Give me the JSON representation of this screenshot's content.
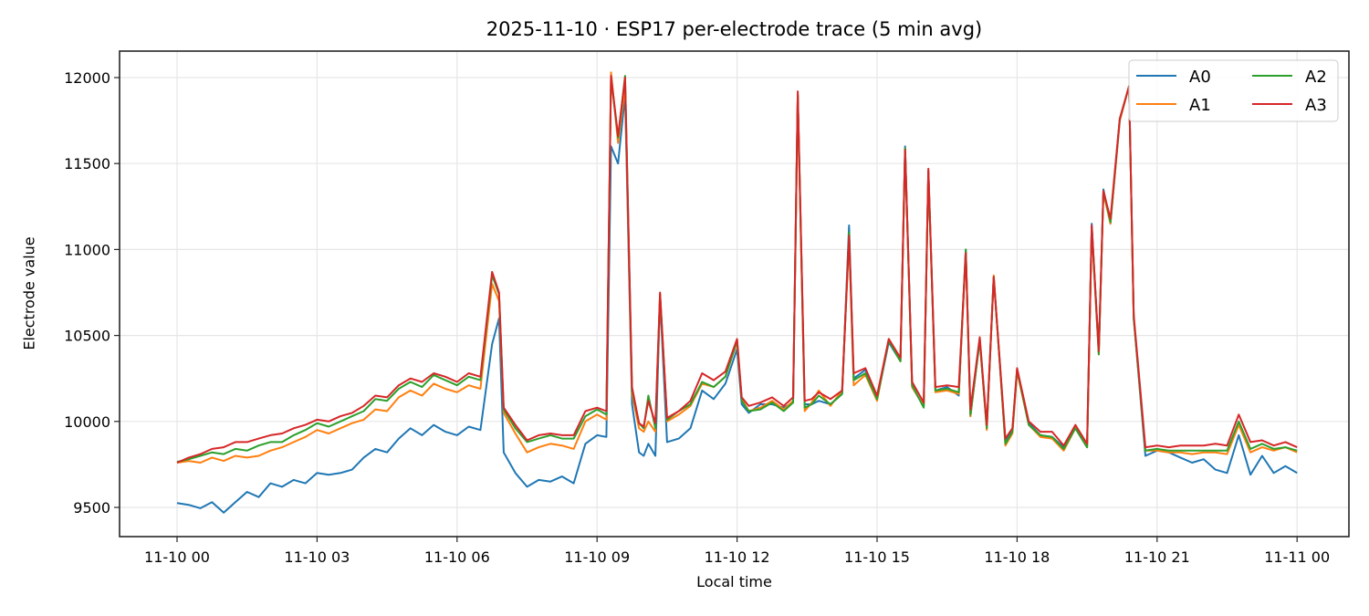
{
  "chart_data": {
    "type": "line",
    "title": "2025-11-10 · ESP17 per-electrode trace (5 min avg)",
    "xlabel": "Local time",
    "ylabel": "Electrode value",
    "x_ticks": [
      "11-10 00",
      "11-10 03",
      "11-10 06",
      "11-10 09",
      "11-10 12",
      "11-10 15",
      "11-10 18",
      "11-10 21",
      "11-11 00"
    ],
    "y_ticks": [
      9500,
      10000,
      10500,
      11000,
      11500,
      12000
    ],
    "ylim": [
      9330,
      12150
    ],
    "xlim_hours": [
      -0.75,
      24.6
    ],
    "grid": true,
    "legend_position": "upper right",
    "legend_columns": 2,
    "x_hours": [
      0,
      0.25,
      0.5,
      0.75,
      1,
      1.25,
      1.5,
      1.75,
      2,
      2.25,
      2.5,
      2.75,
      3,
      3.25,
      3.5,
      3.75,
      4,
      4.25,
      4.5,
      4.75,
      5,
      5.25,
      5.5,
      5.75,
      6,
      6.25,
      6.5,
      6.75,
      6.9,
      7,
      7.25,
      7.5,
      7.75,
      8,
      8.25,
      8.5,
      8.75,
      9,
      9.2,
      9.3,
      9.45,
      9.6,
      9.75,
      9.9,
      10,
      10.1,
      10.25,
      10.35,
      10.5,
      10.75,
      11,
      11.25,
      11.5,
      11.75,
      12,
      12.1,
      12.25,
      12.5,
      12.75,
      13,
      13.2,
      13.3,
      13.45,
      13.6,
      13.75,
      14,
      14.25,
      14.4,
      14.5,
      14.75,
      15,
      15.25,
      15.5,
      15.6,
      15.75,
      16,
      16.1,
      16.25,
      16.5,
      16.75,
      16.9,
      17,
      17.2,
      17.35,
      17.5,
      17.75,
      17.9,
      18,
      18.25,
      18.5,
      18.75,
      19,
      19.25,
      19.5,
      19.6,
      19.75,
      19.85,
      20,
      20.2,
      20.4,
      20.5,
      20.75,
      21,
      21.25,
      21.5,
      21.75,
      22,
      22.25,
      22.5,
      22.75,
      23,
      23.25,
      23.5,
      23.75,
      24
    ],
    "series": [
      {
        "name": "A0",
        "color": "#1f77b4",
        "values": [
          9525,
          9515,
          9495,
          9530,
          9470,
          9530,
          9590,
          9560,
          9640,
          9620,
          9660,
          9640,
          9700,
          9690,
          9700,
          9720,
          9790,
          9840,
          9820,
          9900,
          9960,
          9920,
          9980,
          9940,
          9920,
          9970,
          9950,
          10450,
          10600,
          9820,
          9700,
          9620,
          9660,
          9650,
          9680,
          9640,
          9870,
          9920,
          9910,
          11600,
          11500,
          11900,
          10100,
          9820,
          9800,
          9870,
          9800,
          10720,
          9880,
          9900,
          9960,
          10180,
          10130,
          10220,
          10420,
          10100,
          10050,
          10100,
          10100,
          10080,
          10110,
          11900,
          10100,
          10100,
          10120,
          10100,
          10160,
          11140,
          10250,
          10300,
          10130,
          10460,
          10350,
          11600,
          10200,
          10090,
          11450,
          10180,
          10200,
          10150,
          11000,
          10030,
          10480,
          9960,
          10840,
          9880,
          9950,
          10300,
          9990,
          9920,
          9910,
          9850,
          9960,
          9850,
          11150,
          10400,
          11350,
          11150,
          11750,
          11950,
          10600,
          9800,
          9830,
          9820,
          9790,
          9760,
          9780,
          9720,
          9700,
          9920,
          9690,
          9800,
          9700,
          9740,
          9700,
          9720
        ]
      },
      {
        "name": "A1",
        "color": "#ff7f0e",
        "values": [
          9760,
          9770,
          9760,
          9790,
          9770,
          9800,
          9790,
          9800,
          9830,
          9850,
          9880,
          9910,
          9950,
          9930,
          9960,
          9990,
          10010,
          10070,
          10060,
          10140,
          10180,
          10150,
          10220,
          10190,
          10170,
          10210,
          10190,
          10800,
          10700,
          10050,
          9930,
          9820,
          9850,
          9870,
          9860,
          9840,
          10000,
          10040,
          10010,
          12030,
          11620,
          11950,
          10160,
          9960,
          9940,
          10000,
          9940,
          10740,
          10000,
          10040,
          10090,
          10220,
          10200,
          10260,
          10460,
          10130,
          10060,
          10080,
          10120,
          10070,
          10120,
          11900,
          10060,
          10110,
          10180,
          10090,
          10180,
          11060,
          10210,
          10270,
          10120,
          10480,
          10350,
          11580,
          10200,
          10090,
          11450,
          10170,
          10180,
          10160,
          10980,
          10030,
          10480,
          9950,
          10850,
          9860,
          9930,
          10290,
          9980,
          9910,
          9900,
          9830,
          9960,
          9850,
          11120,
          10390,
          11330,
          11150,
          11750,
          11950,
          10600,
          9830,
          9830,
          9820,
          9820,
          9810,
          9820,
          9820,
          9810,
          9980,
          9820,
          9850,
          9830,
          9850,
          9820,
          9840
        ]
      },
      {
        "name": "A2",
        "color": "#2ca02c",
        "values": [
          9765,
          9780,
          9800,
          9820,
          9810,
          9840,
          9830,
          9860,
          9880,
          9880,
          9920,
          9950,
          9990,
          9970,
          10000,
          10030,
          10060,
          10130,
          10120,
          10190,
          10230,
          10200,
          10270,
          10240,
          10210,
          10260,
          10240,
          10850,
          10740,
          10070,
          9960,
          9880,
          9900,
          9920,
          9900,
          9900,
          10030,
          10070,
          10040,
          12000,
          11650,
          12010,
          10180,
          9990,
          9960,
          10150,
          9960,
          10740,
          10010,
          10060,
          10100,
          10230,
          10200,
          10260,
          10470,
          10120,
          10060,
          10070,
          10110,
          10060,
          10110,
          11900,
          10080,
          10100,
          10150,
          10100,
          10160,
          11100,
          10240,
          10280,
          10130,
          10470,
          10350,
          11590,
          10210,
          10080,
          11460,
          10180,
          10190,
          10170,
          11000,
          10040,
          10470,
          9960,
          10840,
          9870,
          9940,
          10300,
          9980,
          9920,
          9910,
          9840,
          9960,
          9850,
          11130,
          10390,
          11340,
          11160,
          11760,
          11950,
          10600,
          9830,
          9840,
          9830,
          9830,
          9830,
          9830,
          9830,
          9830,
          10000,
          9840,
          9870,
          9840,
          9850,
          9830,
          9850
        ]
      },
      {
        "name": "A3",
        "color": "#d62728",
        "values": [
          9760,
          9790,
          9810,
          9840,
          9850,
          9880,
          9880,
          9900,
          9920,
          9930,
          9960,
          9980,
          10010,
          10000,
          10030,
          10050,
          10090,
          10150,
          10140,
          10210,
          10250,
          10230,
          10280,
          10260,
          10230,
          10280,
          10260,
          10870,
          10750,
          10080,
          9980,
          9890,
          9920,
          9930,
          9920,
          9920,
          10060,
          10080,
          10060,
          12010,
          11660,
          12000,
          10200,
          9990,
          9970,
          10120,
          9990,
          10750,
          10020,
          10060,
          10120,
          10280,
          10240,
          10290,
          10480,
          10140,
          10090,
          10110,
          10140,
          10090,
          10140,
          11920,
          10120,
          10130,
          10170,
          10130,
          10180,
          11080,
          10280,
          10310,
          10150,
          10480,
          10370,
          11580,
          10230,
          10110,
          11470,
          10200,
          10210,
          10200,
          10980,
          10070,
          10490,
          9980,
          10840,
          9900,
          9960,
          10310,
          10000,
          9940,
          9940,
          9860,
          9980,
          9870,
          11140,
          10410,
          11340,
          11180,
          11760,
          11950,
          10620,
          9850,
          9860,
          9850,
          9860,
          9860,
          9860,
          9870,
          9860,
          10040,
          9880,
          9890,
          9860,
          9880,
          9850,
          9860
        ]
      }
    ]
  },
  "legend": {
    "items": [
      {
        "label": "A0",
        "color": "#1f77b4"
      },
      {
        "label": "A1",
        "color": "#ff7f0e"
      },
      {
        "label": "A2",
        "color": "#2ca02c"
      },
      {
        "label": "A3",
        "color": "#d62728"
      }
    ]
  }
}
